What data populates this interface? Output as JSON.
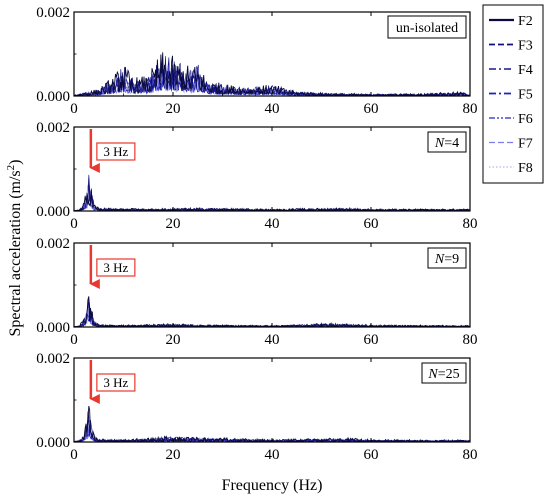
{
  "figure": {
    "ylabel": "Spectral acceleration (m/s",
    "ylabel_sup": "2",
    "ylabel_close": ")",
    "xlabel": "Frequency (Hz)"
  },
  "colors": {
    "axis": "#000000",
    "arrow": "#e8382f",
    "hz_box": "#e8382f",
    "F2": "#0a0a3c",
    "F3": "#10107a",
    "F4": "#1a1a8c",
    "F5": "#2020c0",
    "F6": "#4b4bd0",
    "F7": "#7c7ce8",
    "F8": "#b4b4f4"
  },
  "chart_data": [
    {
      "type": "line",
      "panel": "un-isolated",
      "tag": "un-isolated",
      "xlim": [
        0,
        80
      ],
      "ylim": [
        0,
        0.002
      ],
      "xticks": [
        "0",
        "20",
        "40",
        "60",
        "80"
      ],
      "yticks": [
        "0.000",
        "0.002"
      ],
      "series": [
        {
          "name": "F2",
          "style": "solid"
        },
        {
          "name": "F3",
          "style": "dash"
        },
        {
          "name": "F4",
          "style": "dashdot"
        },
        {
          "name": "F5",
          "style": "dashdot"
        },
        {
          "name": "F6",
          "style": "dashdotdot"
        },
        {
          "name": "F7",
          "style": "dash"
        },
        {
          "name": "F8",
          "style": "dot"
        }
      ],
      "x": [
        0,
        5,
        8,
        10,
        12,
        15,
        17,
        18,
        20,
        22,
        24,
        25,
        27,
        30,
        35,
        40,
        45,
        50,
        60,
        70,
        78,
        80
      ],
      "envelope": [
        3e-05,
        0.00018,
        0.0005,
        0.0008,
        0.00045,
        0.0005,
        0.00095,
        0.0011,
        0.00095,
        0.0008,
        0.0007,
        0.00085,
        0.0004,
        0.0003,
        0.00022,
        0.00028,
        0.00012,
        8e-05,
        5e-05,
        6e-05,
        0.0001,
        5e-05
      ]
    },
    {
      "type": "line",
      "panel": "N=4",
      "tag_prefix": "N",
      "tag_value": "=4",
      "annotation": "3 Hz",
      "xlim": [
        0,
        80
      ],
      "ylim": [
        0,
        0.002
      ],
      "xticks": [
        "0",
        "20",
        "40",
        "60",
        "80"
      ],
      "yticks": [
        "0.000",
        "0.002"
      ],
      "peak_x": 3,
      "peak_y": 0.0011,
      "x": [
        0,
        1,
        2,
        2.5,
        3,
        3.5,
        4,
        5,
        10,
        20,
        25,
        40,
        55,
        60,
        80
      ],
      "envelope": [
        2e-05,
        3e-05,
        0.0002,
        0.0006,
        0.0011,
        0.0006,
        0.0002,
        8e-05,
        6e-05,
        6e-05,
        8e-05,
        5e-05,
        8e-05,
        5e-05,
        5e-05
      ]
    },
    {
      "type": "line",
      "panel": "N=9",
      "tag_prefix": "N",
      "tag_value": "=9",
      "annotation": "3 Hz",
      "xlim": [
        0,
        80
      ],
      "ylim": [
        0,
        0.002
      ],
      "xticks": [
        "0",
        "20",
        "40",
        "60",
        "80"
      ],
      "yticks": [
        "0.000",
        "0.002"
      ],
      "peak_x": 3,
      "peak_y": 0.001,
      "x": [
        0,
        1,
        2,
        2.5,
        3,
        3.5,
        4,
        5,
        10,
        20,
        25,
        40,
        53,
        60,
        80
      ],
      "envelope": [
        2e-05,
        3e-05,
        0.0002,
        0.0005,
        0.001,
        0.0005,
        0.0002,
        6e-05,
        5e-05,
        8e-05,
        6e-05,
        4e-05,
        0.0001,
        5e-05,
        4e-05
      ]
    },
    {
      "type": "line",
      "panel": "N=25",
      "tag_prefix": "N",
      "tag_value": "=25",
      "annotation": "3 Hz",
      "xlim": [
        0,
        80
      ],
      "ylim": [
        0,
        0.002
      ],
      "xticks": [
        "0",
        "20",
        "40",
        "60",
        "80"
      ],
      "yticks": [
        "0.000",
        "0.002"
      ],
      "peak_x": 3,
      "peak_y": 0.00105,
      "x": [
        0,
        1,
        2,
        2.5,
        3,
        3.5,
        4,
        5,
        10,
        17,
        20,
        25,
        40,
        55,
        60,
        80
      ],
      "envelope": [
        2e-05,
        4e-05,
        0.0002,
        0.0005,
        0.00105,
        0.0005,
        0.0002,
        8e-05,
        6e-05,
        0.00012,
        0.00015,
        0.00012,
        6e-05,
        0.0001,
        6e-05,
        5e-05
      ]
    }
  ]
}
